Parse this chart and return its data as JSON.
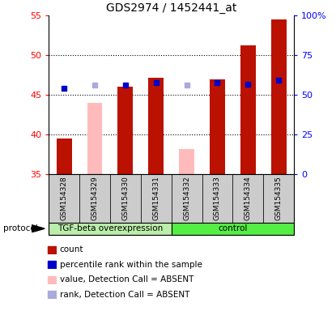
{
  "title": "GDS2974 / 1452441_at",
  "samples": [
    "GSM154328",
    "GSM154329",
    "GSM154330",
    "GSM154331",
    "GSM154332",
    "GSM154333",
    "GSM154334",
    "GSM154335"
  ],
  "count_values": [
    39.5,
    null,
    46.0,
    47.2,
    null,
    47.0,
    51.2,
    54.5
  ],
  "count_absent_values": [
    null,
    44.0,
    null,
    null,
    38.2,
    null,
    null,
    null
  ],
  "rank_values": [
    45.8,
    null,
    46.2,
    46.5,
    null,
    46.5,
    46.3,
    46.8
  ],
  "rank_absent_values": [
    null,
    46.2,
    null,
    null,
    46.2,
    null,
    null,
    null
  ],
  "ylim_left": [
    35,
    55
  ],
  "ylim_right": [
    0,
    100
  ],
  "yticks_left": [
    35,
    40,
    45,
    50,
    55
  ],
  "yticks_right": [
    0,
    25,
    50,
    75,
    100
  ],
  "ytick_labels_right": [
    "0",
    "25",
    "50",
    "75",
    "100%"
  ],
  "group1_label": "TGF-beta overexpression",
  "group2_label": "control",
  "group1_count": 4,
  "group2_count": 4,
  "protocol_label": "protocol",
  "bar_width": 0.5,
  "red_color": "#bb1100",
  "pink_color": "#ffbbbb",
  "blue_color": "#0000cc",
  "light_blue_color": "#aaaadd",
  "group1_bg": "#bbeeaa",
  "group2_bg": "#55ee44",
  "sample_bg": "#cccccc",
  "legend_items": [
    "count",
    "percentile rank within the sample",
    "value, Detection Call = ABSENT",
    "rank, Detection Call = ABSENT"
  ]
}
